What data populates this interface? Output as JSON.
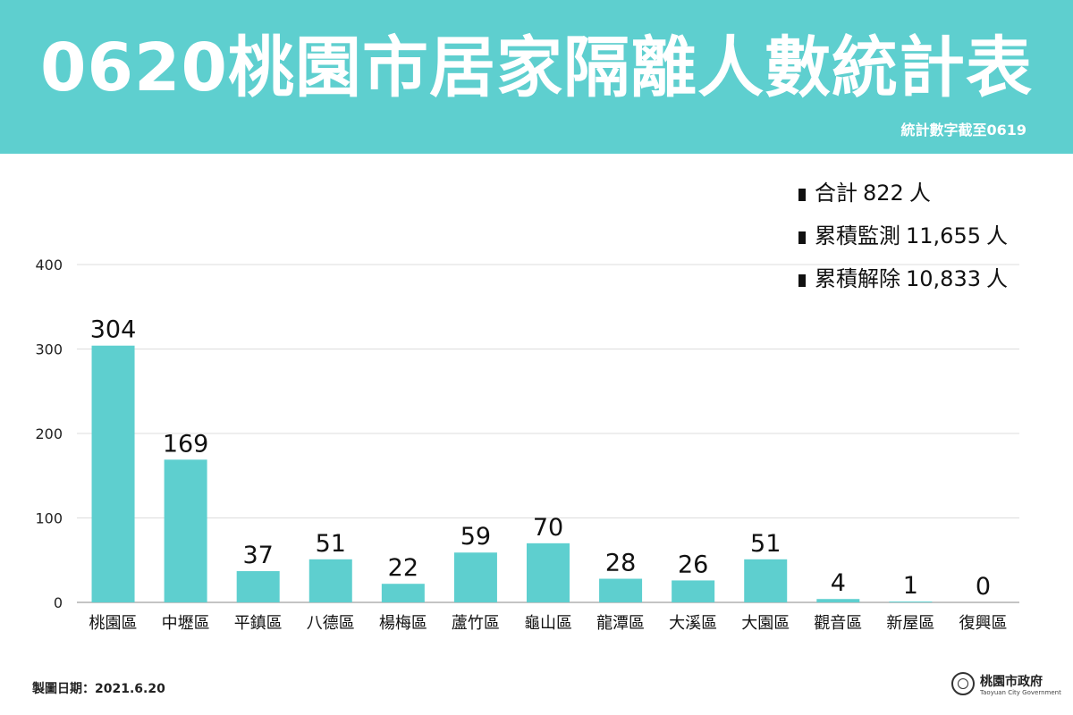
{
  "header": {
    "title": "0620桃園市居家隔離人數統計表",
    "subtitle": "統計數字截至0619"
  },
  "summary": [
    {
      "label": "合計",
      "value": "822",
      "unit": "人"
    },
    {
      "label": "累積監測",
      "value": "11,655",
      "unit": "人"
    },
    {
      "label": "累積解除",
      "value": "10,833",
      "unit": "人"
    }
  ],
  "chart_data": {
    "type": "bar",
    "title": "0620桃園市居家隔離人數統計表",
    "xlabel": "",
    "ylabel": "",
    "categories": [
      "桃園區",
      "中壢區",
      "平鎮區",
      "八德區",
      "楊梅區",
      "蘆竹區",
      "龜山區",
      "龍潭區",
      "大溪區",
      "大園區",
      "觀音區",
      "新屋區",
      "復興區"
    ],
    "values": [
      304,
      169,
      37,
      51,
      22,
      59,
      70,
      28,
      26,
      51,
      4,
      1,
      0
    ],
    "ylim": [
      0,
      400
    ],
    "yticks": [
      0,
      100,
      200,
      300,
      400
    ],
    "grid": true,
    "legend": "none",
    "bar_color": "#5ecfcf"
  },
  "footer": {
    "date_label": "製圖日期：2021.6.20",
    "org_name": "桃園市政府",
    "org_name_en": "Taoyuan City Government"
  },
  "colors": {
    "banner": "#5ecfcf",
    "bar": "#5ecfcf",
    "text": "#111111",
    "grid": "#dddddd"
  }
}
